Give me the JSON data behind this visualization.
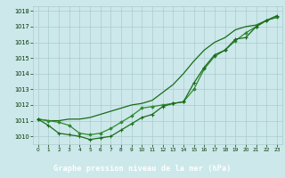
{
  "x": [
    0,
    1,
    2,
    3,
    4,
    5,
    6,
    7,
    8,
    9,
    10,
    11,
    12,
    13,
    14,
    15,
    16,
    17,
    18,
    19,
    20,
    21,
    22,
    23
  ],
  "line1": [
    1011.1,
    1011.0,
    1011.0,
    1011.1,
    1011.1,
    1011.2,
    1011.4,
    1011.6,
    1011.8,
    1012.0,
    1012.1,
    1012.3,
    1012.8,
    1013.3,
    1014.0,
    1014.8,
    1015.5,
    1016.0,
    1016.3,
    1016.8,
    1017.0,
    1017.1,
    1017.4,
    1017.6
  ],
  "line2": [
    1011.1,
    1011.0,
    1010.9,
    1010.7,
    1010.2,
    1010.1,
    1010.2,
    1010.5,
    1010.9,
    1011.3,
    1011.8,
    1011.9,
    1012.0,
    1012.1,
    1012.2,
    1013.0,
    1014.3,
    1015.1,
    1015.5,
    1016.1,
    1016.6,
    1017.0,
    1017.4,
    1017.6
  ],
  "line3": [
    1011.1,
    1010.7,
    1010.2,
    1010.1,
    1010.0,
    1009.8,
    1009.9,
    1010.0,
    1010.4,
    1010.8,
    1011.2,
    1011.4,
    1011.9,
    1012.1,
    1012.2,
    1013.4,
    1014.4,
    1015.2,
    1015.5,
    1016.2,
    1016.3,
    1017.0,
    1017.4,
    1017.7
  ],
  "line_color1": "#1a6b1a",
  "line_color2": "#2d8a2d",
  "line_color3": "#1a6b1a",
  "bg_color": "#cce8ea",
  "grid_color": "#aacccc",
  "xlabel": "Graphe pression niveau de la mer (hPa)",
  "xlabel_color": "white",
  "xlabel_bg": "#4a9a4a",
  "tick_color": "#003300",
  "ylim": [
    1009.5,
    1018.3
  ],
  "xlim": [
    -0.5,
    23.5
  ],
  "yticks": [
    1010,
    1011,
    1012,
    1013,
    1014,
    1015,
    1016,
    1017,
    1018
  ],
  "xticks": [
    0,
    1,
    2,
    3,
    4,
    5,
    6,
    7,
    8,
    9,
    10,
    11,
    12,
    13,
    14,
    15,
    16,
    17,
    18,
    19,
    20,
    21,
    22,
    23
  ],
  "figsize": [
    3.2,
    2.0
  ],
  "dpi": 100
}
